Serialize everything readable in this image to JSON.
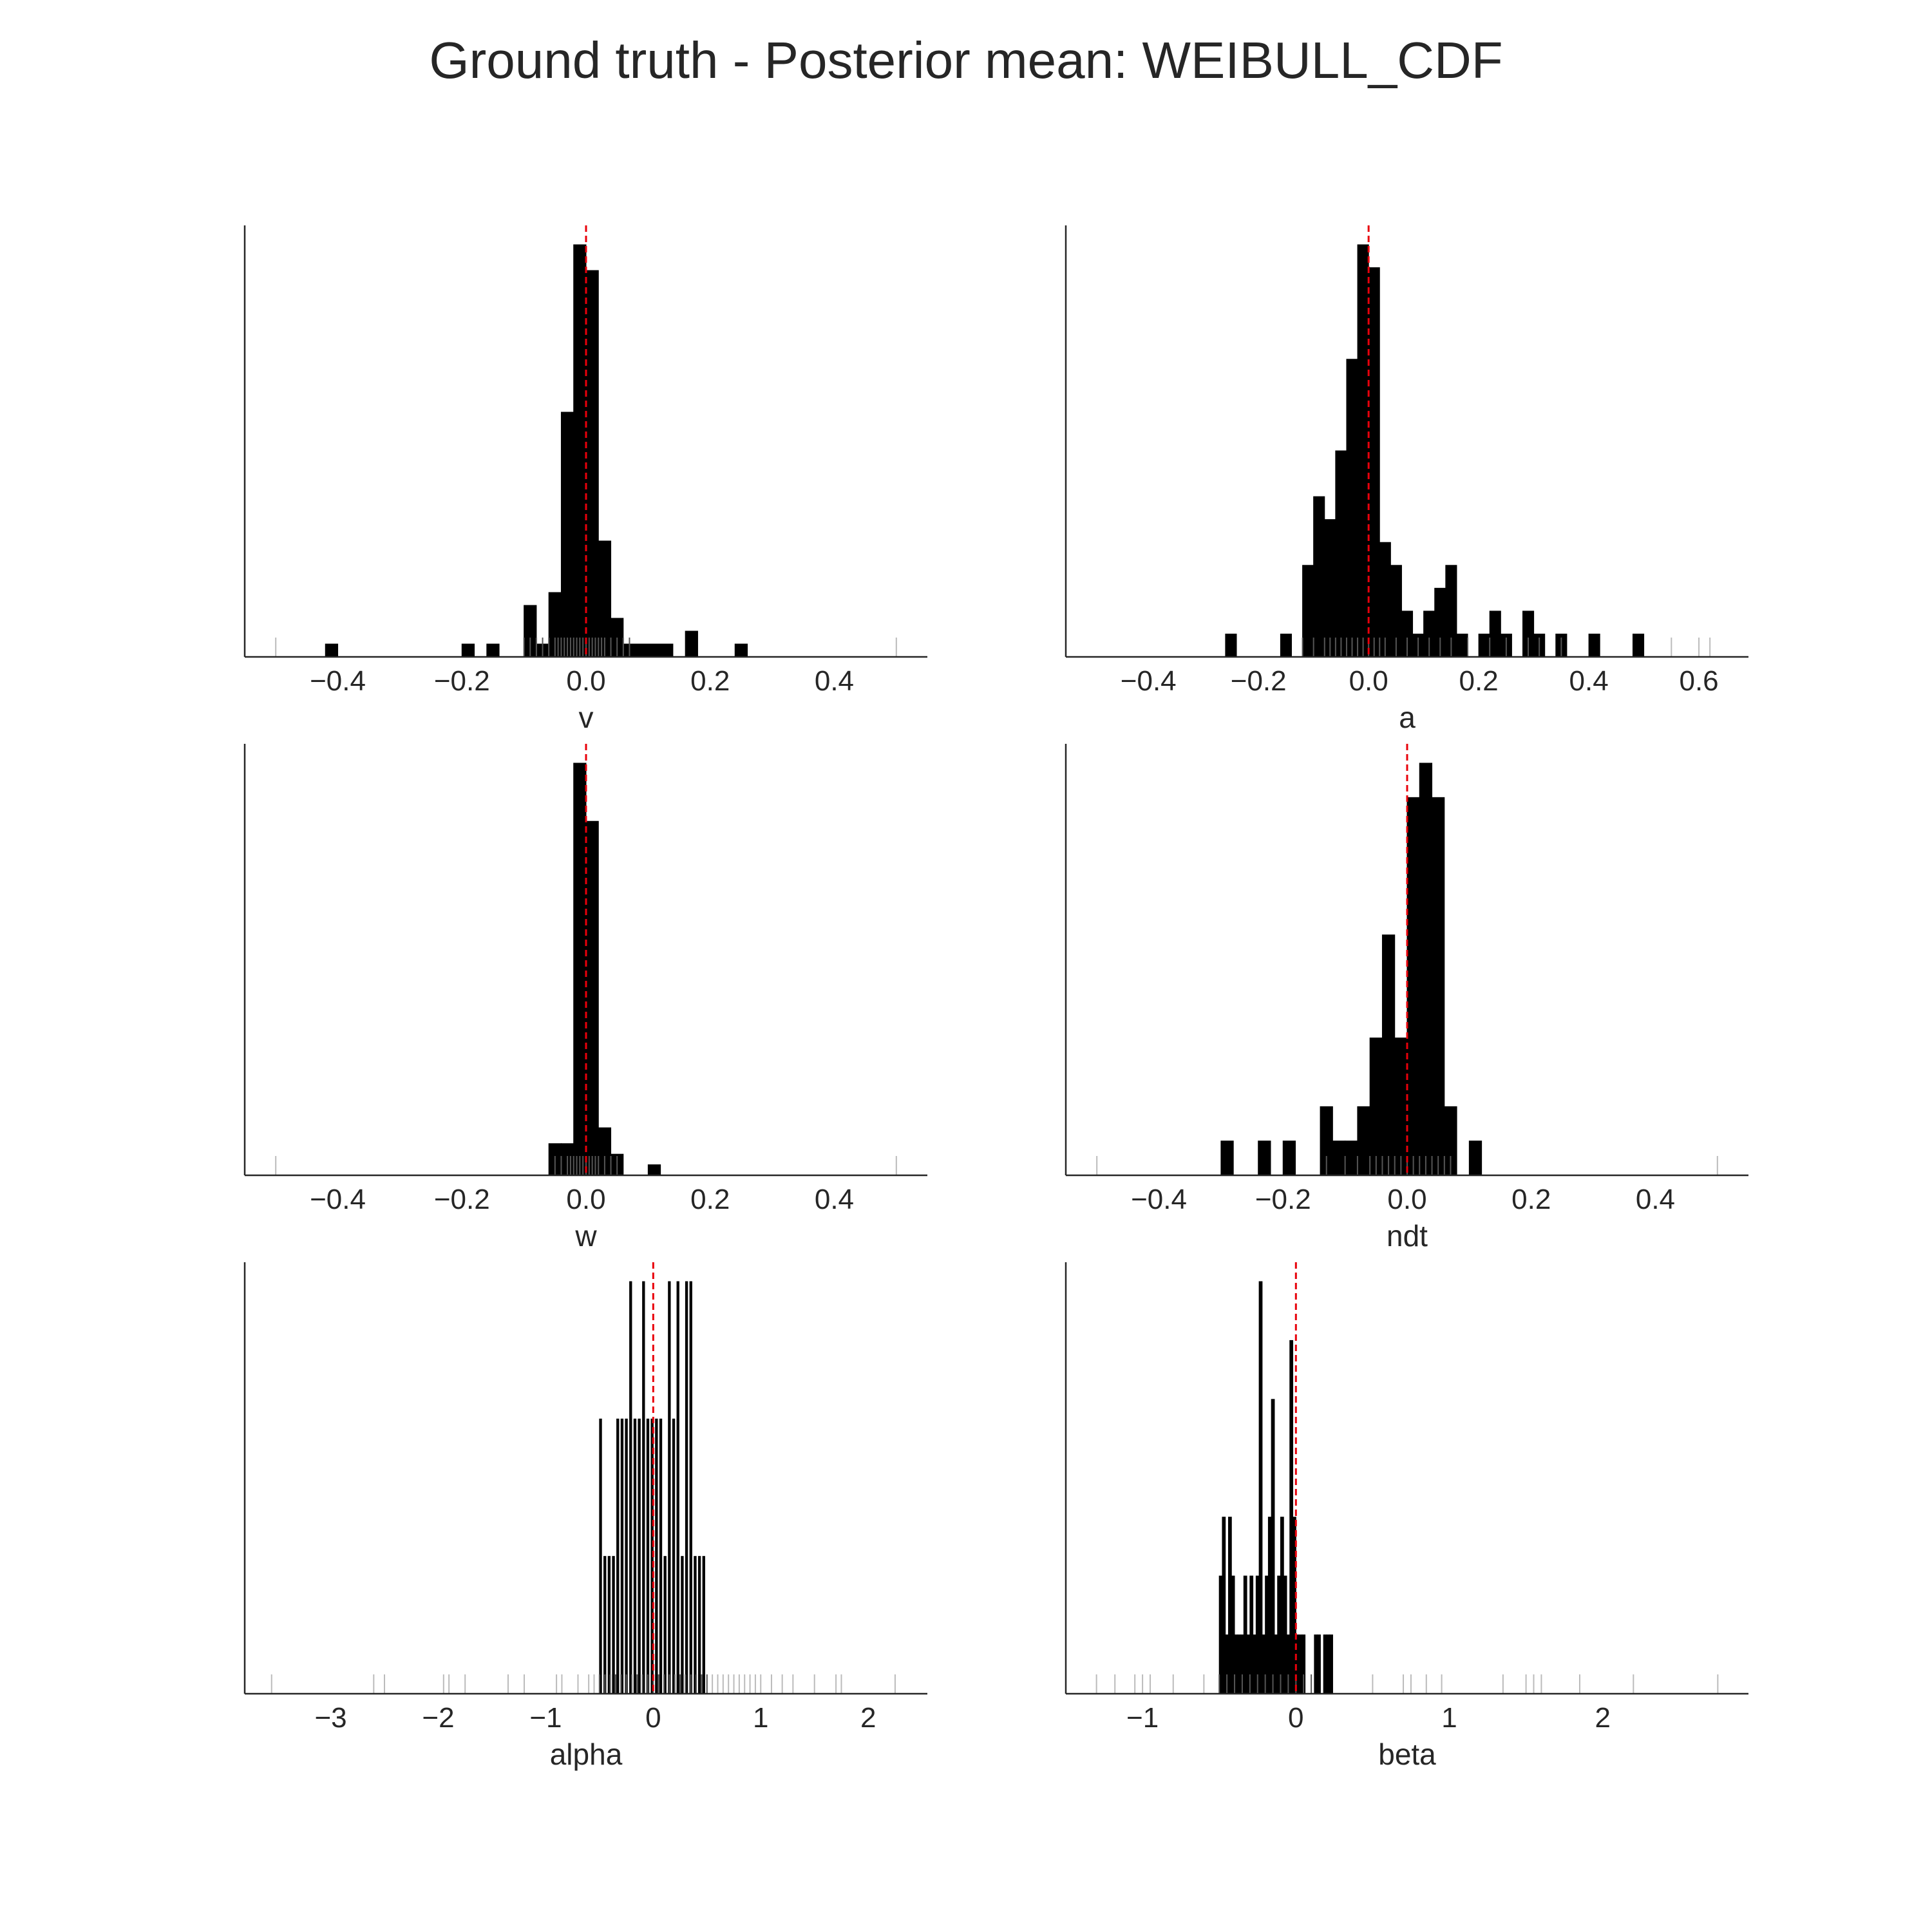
{
  "title": "Ground truth - Posterior mean: WEIBULL_CDF",
  "colors": {
    "bar": "#000000",
    "rug": "#000000",
    "reference_line": "#e8000b",
    "axis": "#262626",
    "text": "#262626"
  },
  "chart_data": [
    {
      "type": "bar",
      "subtype": "histogram_with_rug",
      "xlabel": "v",
      "xlim": [
        -0.55,
        0.55
      ],
      "xticks": [
        -0.4,
        -0.2,
        0.0,
        0.2,
        0.4
      ],
      "xtick_labels": [
        "−0.4",
        "−0.2",
        "0.0",
        "0.2",
        "0.4"
      ],
      "reference_x": 0.0,
      "bin_width": 0.02,
      "bins": [
        [
          -0.42,
          1
        ],
        [
          -0.2,
          1
        ],
        [
          -0.16,
          1
        ],
        [
          -0.1,
          4
        ],
        [
          -0.08,
          1
        ],
        [
          -0.06,
          5
        ],
        [
          -0.04,
          19
        ],
        [
          -0.02,
          32
        ],
        [
          0.0,
          30
        ],
        [
          0.02,
          9
        ],
        [
          0.04,
          3
        ],
        [
          0.06,
          1
        ],
        [
          0.08,
          1
        ],
        [
          0.1,
          1
        ],
        [
          0.12,
          1
        ],
        [
          0.16,
          2
        ],
        [
          0.24,
          1
        ]
      ],
      "rug": [
        -0.1,
        -0.09,
        -0.08,
        -0.07,
        -0.06,
        -0.05,
        -0.045,
        -0.04,
        -0.035,
        -0.03,
        -0.025,
        -0.02,
        -0.015,
        -0.01,
        -0.005,
        0.0,
        0.005,
        0.01,
        0.015,
        0.02,
        0.025,
        0.03,
        0.04,
        0.05,
        0.06,
        0.07
      ],
      "rug_light": [
        -0.5,
        0.5
      ]
    },
    {
      "type": "bar",
      "subtype": "histogram_with_rug",
      "xlabel": "a",
      "xlim": [
        -0.55,
        0.69
      ],
      "xticks": [
        -0.4,
        -0.2,
        0.0,
        0.2,
        0.4,
        0.6
      ],
      "xtick_labels": [
        "−0.4",
        "−0.2",
        "0.0",
        "0.2",
        "0.4",
        "0.6"
      ],
      "reference_x": 0.0,
      "bin_width": 0.02,
      "bins": [
        [
          -0.26,
          1
        ],
        [
          -0.16,
          1
        ],
        [
          -0.12,
          4
        ],
        [
          -0.1,
          7
        ],
        [
          -0.08,
          6
        ],
        [
          -0.06,
          9
        ],
        [
          -0.04,
          13
        ],
        [
          -0.02,
          18
        ],
        [
          0.0,
          17
        ],
        [
          0.02,
          5
        ],
        [
          0.04,
          4
        ],
        [
          0.06,
          2
        ],
        [
          0.08,
          1
        ],
        [
          0.1,
          2
        ],
        [
          0.12,
          3
        ],
        [
          0.14,
          4
        ],
        [
          0.16,
          1
        ],
        [
          0.2,
          1
        ],
        [
          0.22,
          2
        ],
        [
          0.24,
          1
        ],
        [
          0.28,
          2
        ],
        [
          0.3,
          1
        ],
        [
          0.34,
          1
        ],
        [
          0.4,
          1
        ],
        [
          0.48,
          1
        ]
      ],
      "rug": [
        -0.12,
        -0.1,
        -0.08,
        -0.07,
        -0.06,
        -0.05,
        -0.04,
        -0.03,
        -0.02,
        -0.01,
        0.0,
        0.01,
        0.02,
        0.03,
        0.05,
        0.07,
        0.09,
        0.11,
        0.13,
        0.15,
        0.18,
        0.22,
        0.25,
        0.29,
        0.31,
        0.35
      ],
      "rug_light": [
        0.55,
        0.6,
        0.62
      ]
    },
    {
      "type": "bar",
      "subtype": "histogram_with_rug",
      "xlabel": "w",
      "xlim": [
        -0.55,
        0.55
      ],
      "xticks": [
        -0.4,
        -0.2,
        0.0,
        0.2,
        0.4
      ],
      "xtick_labels": [
        "−0.4",
        "−0.2",
        "0.0",
        "0.2",
        "0.4"
      ],
      "reference_x": 0.0,
      "bin_width": 0.02,
      "bins": [
        [
          -0.06,
          6
        ],
        [
          -0.04,
          6
        ],
        [
          -0.02,
          78
        ],
        [
          0.0,
          67
        ],
        [
          0.02,
          9
        ],
        [
          0.04,
          4
        ],
        [
          0.1,
          2
        ]
      ],
      "rug": [
        -0.05,
        -0.04,
        -0.03,
        -0.025,
        -0.02,
        -0.015,
        -0.01,
        -0.005,
        0.0,
        0.005,
        0.01,
        0.015,
        0.02,
        0.03,
        0.04,
        0.05
      ],
      "rug_light": [
        -0.5,
        0.5
      ]
    },
    {
      "type": "bar",
      "subtype": "histogram_with_rug",
      "xlabel": "ndt",
      "xlim": [
        -0.55,
        0.55
      ],
      "xticks": [
        -0.4,
        -0.2,
        0.0,
        0.2,
        0.4
      ],
      "xtick_labels": [
        "−0.4",
        "−0.2",
        "0.0",
        "0.2",
        "0.4"
      ],
      "reference_x": 0.0,
      "bin_width": 0.02,
      "bins": [
        [
          -0.3,
          1
        ],
        [
          -0.24,
          1
        ],
        [
          -0.2,
          1
        ],
        [
          -0.14,
          2
        ],
        [
          -0.12,
          1
        ],
        [
          -0.1,
          1
        ],
        [
          -0.08,
          2
        ],
        [
          -0.06,
          4
        ],
        [
          -0.04,
          7
        ],
        [
          -0.02,
          4
        ],
        [
          0.0,
          11
        ],
        [
          0.02,
          12
        ],
        [
          0.04,
          11
        ],
        [
          0.06,
          2
        ],
        [
          0.1,
          1
        ]
      ],
      "rug": [
        -0.13,
        -0.1,
        -0.08,
        -0.06,
        -0.05,
        -0.04,
        -0.03,
        -0.02,
        -0.01,
        0.0,
        0.01,
        0.02,
        0.03,
        0.04,
        0.05,
        0.06,
        0.07
      ],
      "rug_light": [
        -0.5,
        0.5
      ]
    },
    {
      "type": "bar",
      "subtype": "histogram_with_rug",
      "xlabel": "alpha",
      "xlim": [
        -3.8,
        2.55
      ],
      "xticks": [
        -3,
        -2,
        -1,
        0,
        1,
        2
      ],
      "xtick_labels": [
        "−3",
        "−2",
        "−1",
        "0",
        "1",
        "2"
      ],
      "reference_x": 0.0,
      "bin_width": 0.02,
      "bins": [
        [
          -0.5,
          2
        ],
        [
          -0.46,
          1
        ],
        [
          -0.42,
          1
        ],
        [
          -0.38,
          1
        ],
        [
          -0.34,
          2
        ],
        [
          -0.3,
          2
        ],
        [
          -0.26,
          2
        ],
        [
          -0.22,
          3
        ],
        [
          -0.18,
          2
        ],
        [
          -0.14,
          2
        ],
        [
          -0.1,
          3
        ],
        [
          -0.06,
          2
        ],
        [
          -0.02,
          2
        ],
        [
          0.02,
          2
        ],
        [
          0.06,
          2
        ],
        [
          0.1,
          1
        ],
        [
          0.14,
          3
        ],
        [
          0.18,
          2
        ],
        [
          0.22,
          3
        ],
        [
          0.26,
          1
        ],
        [
          0.3,
          3
        ],
        [
          0.34,
          3
        ],
        [
          0.38,
          1
        ],
        [
          0.42,
          1
        ],
        [
          0.46,
          1
        ]
      ],
      "rug": [
        -0.5,
        -0.45,
        -0.4,
        -0.35,
        -0.3,
        -0.25,
        -0.2,
        -0.15,
        -0.1,
        -0.05,
        0.0,
        0.05,
        0.1,
        0.15,
        0.2,
        0.25,
        0.3,
        0.35,
        0.4,
        0.45,
        0.5
      ],
      "rug_light": [
        -3.55,
        -2.6,
        -2.5,
        -1.95,
        -1.9,
        -1.75,
        -1.35,
        -1.2,
        -0.9,
        -0.85,
        -0.7,
        -0.6,
        -0.55,
        0.55,
        0.6,
        0.65,
        0.7,
        0.75,
        0.8,
        0.85,
        0.9,
        0.95,
        1.0,
        1.1,
        1.2,
        1.3,
        1.5,
        1.7,
        1.75,
        2.25
      ]
    },
    {
      "type": "bar",
      "subtype": "histogram_with_rug",
      "xlabel": "beta",
      "xlim": [
        -1.5,
        2.95
      ],
      "xticks": [
        -1,
        0,
        1,
        2
      ],
      "xtick_labels": [
        "−1",
        "0",
        "1",
        "2"
      ],
      "reference_x": 0.0,
      "bin_width": 0.02,
      "bins": [
        [
          -0.5,
          2
        ],
        [
          -0.48,
          3
        ],
        [
          -0.46,
          1
        ],
        [
          -0.44,
          3
        ],
        [
          -0.42,
          2
        ],
        [
          -0.4,
          1
        ],
        [
          -0.38,
          1
        ],
        [
          -0.36,
          1
        ],
        [
          -0.34,
          2
        ],
        [
          -0.32,
          1
        ],
        [
          -0.3,
          2
        ],
        [
          -0.28,
          1
        ],
        [
          -0.26,
          2
        ],
        [
          -0.24,
          7
        ],
        [
          -0.22,
          1
        ],
        [
          -0.2,
          2
        ],
        [
          -0.18,
          3
        ],
        [
          -0.16,
          5
        ],
        [
          -0.14,
          1
        ],
        [
          -0.12,
          2
        ],
        [
          -0.1,
          3
        ],
        [
          -0.08,
          2
        ],
        [
          -0.06,
          1
        ],
        [
          -0.04,
          6
        ],
        [
          -0.02,
          3
        ],
        [
          0.0,
          1
        ],
        [
          0.02,
          1
        ],
        [
          0.04,
          1
        ],
        [
          0.12,
          1
        ],
        [
          0.14,
          1
        ],
        [
          0.18,
          1
        ],
        [
          0.2,
          1
        ],
        [
          0.22,
          1
        ]
      ],
      "rug": [
        -0.5,
        -0.45,
        -0.4,
        -0.35,
        -0.3,
        -0.25,
        -0.2,
        -0.15,
        -0.1,
        -0.05,
        0.0,
        0.05,
        0.1
      ],
      "rug_light": [
        -1.3,
        -1.18,
        -1.05,
        -1.0,
        -0.95,
        -0.8,
        -0.6,
        0.5,
        0.7,
        0.75,
        0.85,
        0.95,
        1.35,
        1.5,
        1.55,
        1.6,
        1.85,
        2.2,
        2.75
      ]
    }
  ]
}
